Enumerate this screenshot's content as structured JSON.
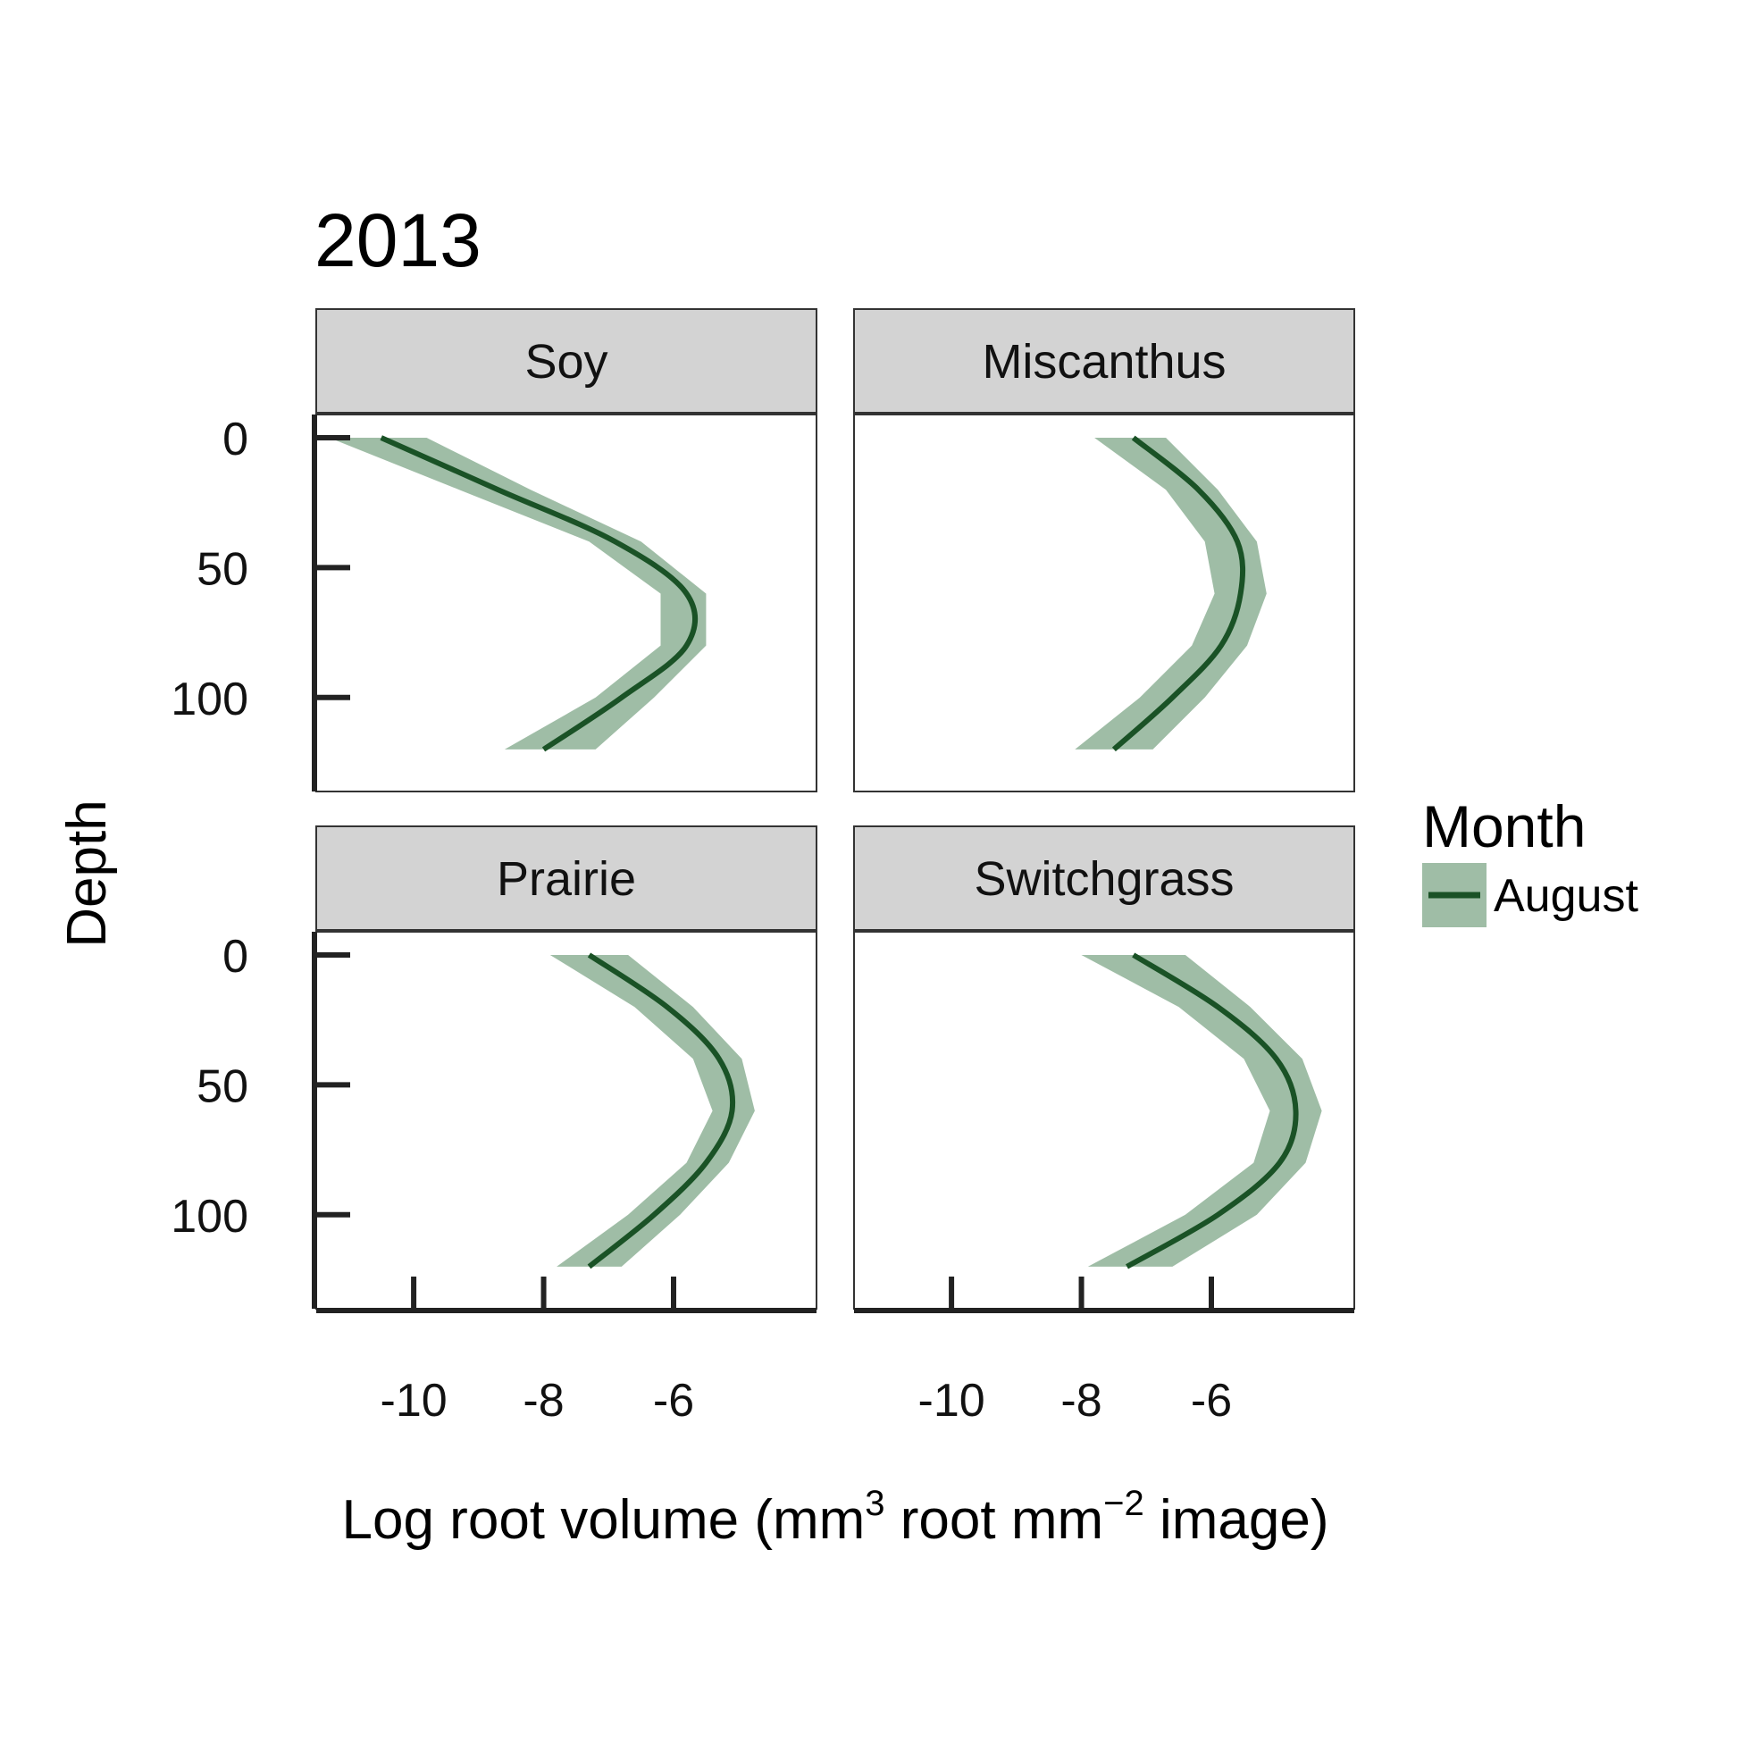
{
  "colors": {
    "line": "#1a5226",
    "band": "#9fbda6",
    "strip": "#d3d3d3",
    "axis": "#222222"
  },
  "chart_data": {
    "type": "line",
    "title": "2013",
    "xlabel": {
      "pre": "Log root volume (mm",
      "sup1": "3",
      "mid": " root mm",
      "sup2": "−2",
      "post": " image)"
    },
    "ylabel": "Depth",
    "xlim": [
      -11.5,
      -3.8
    ],
    "ylim": [
      0,
      130
    ],
    "y_reversed": true,
    "xticks": [
      -10,
      -8,
      -6
    ],
    "xtick_labels": [
      "-10",
      "-8",
      "-6"
    ],
    "yticks": [
      0,
      50,
      100
    ],
    "ytick_labels": [
      "0",
      "50",
      "100"
    ],
    "legend": {
      "title": "Month",
      "position": "right",
      "entries": [
        "August"
      ]
    },
    "panels": [
      {
        "name": "Soy",
        "depth": [
          0,
          20,
          40,
          60,
          80,
          100,
          120
        ],
        "value": [
          -10.5,
          -8.7,
          -6.9,
          -5.8,
          -5.8,
          -6.8,
          -8.0
        ],
        "lower": [
          -11.3,
          -9.3,
          -7.3,
          -6.2,
          -6.2,
          -7.2,
          -8.6
        ],
        "upper": [
          -9.8,
          -8.2,
          -6.5,
          -5.5,
          -5.5,
          -6.3,
          -7.2
        ]
      },
      {
        "name": "Miscanthus",
        "depth": [
          0,
          20,
          40,
          60,
          80,
          100,
          120
        ],
        "value": [
          -7.2,
          -6.2,
          -5.6,
          -5.55,
          -5.85,
          -6.6,
          -7.5
        ],
        "lower": [
          -7.8,
          -6.7,
          -6.1,
          -5.95,
          -6.3,
          -7.1,
          -8.1
        ],
        "upper": [
          -6.7,
          -5.9,
          -5.3,
          -5.15,
          -5.45,
          -6.1,
          -6.9
        ]
      },
      {
        "name": "Prairie",
        "depth": [
          0,
          20,
          40,
          60,
          80,
          100,
          120
        ],
        "value": [
          -7.3,
          -6.1,
          -5.3,
          -5.1,
          -5.5,
          -6.3,
          -7.3
        ],
        "lower": [
          -7.9,
          -6.6,
          -5.7,
          -5.4,
          -5.8,
          -6.7,
          -7.8
        ],
        "upper": [
          -6.7,
          -5.7,
          -4.95,
          -4.75,
          -5.15,
          -5.9,
          -6.8
        ]
      },
      {
        "name": "Switchgrass",
        "depth": [
          0,
          20,
          40,
          60,
          80,
          100,
          120
        ],
        "value": [
          -7.2,
          -5.9,
          -5.0,
          -4.7,
          -4.95,
          -5.9,
          -7.3
        ],
        "lower": [
          -8.0,
          -6.5,
          -5.5,
          -5.1,
          -5.35,
          -6.4,
          -7.9
        ],
        "upper": [
          -6.4,
          -5.4,
          -4.6,
          -4.3,
          -4.55,
          -5.3,
          -6.6
        ]
      }
    ]
  }
}
